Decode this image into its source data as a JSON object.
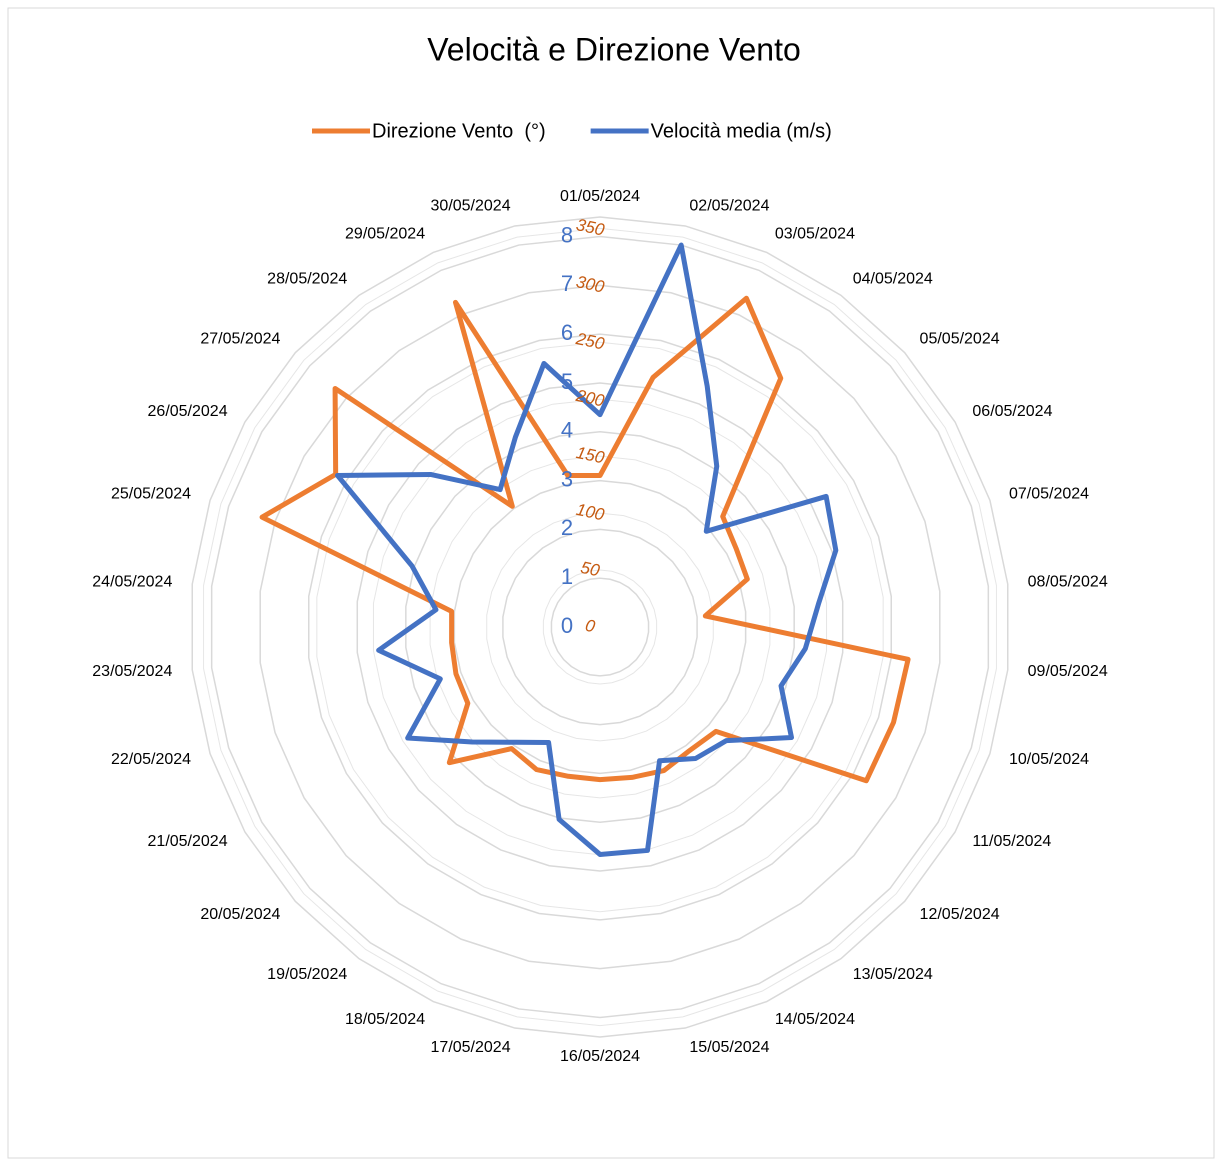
{
  "chart_data": {
    "type": "radar",
    "title": "Velocità e Direzione Vento",
    "categories": [
      "01/05/2024",
      "02/05/2024",
      "03/05/2024",
      "04/05/2024",
      "05/05/2024",
      "06/05/2024",
      "07/05/2024",
      "08/05/2024",
      "09/05/2024",
      "10/05/2024",
      "11/05/2024",
      "12/05/2024",
      "13/05/2024",
      "14/05/2024",
      "15/05/2024",
      "16/05/2024",
      "17/05/2024",
      "18/05/2024",
      "19/05/2024",
      "20/05/2024",
      "21/05/2024",
      "22/05/2024",
      "23/05/2024",
      "24/05/2024",
      "25/05/2024",
      "26/05/2024",
      "27/05/2024",
      "28/05/2024",
      "29/05/2024",
      "30/05/2024"
    ],
    "series": [
      {
        "name": "Direzione Vento  (°)",
        "color": "#ed7d31",
        "axis": "y2",
        "values": [
          133,
          224,
          316,
          270,
          145,
          138,
          136,
          93,
          272,
          271,
          270,
          137,
          134,
          138,
          135,
          134,
          134,
          137,
          132,
          178,
          134,
          133,
          131,
          131,
          312,
          268,
          313,
          131,
          312,
          136
        ]
      },
      {
        "name": "Velocità media (m/s)",
        "color": "#4472c4",
        "values": [
          4.35,
          8.0,
          5.4,
          4.07,
          2.93,
          5.35,
          5.08,
          4.5,
          4.23,
          3.9,
          4.53,
          3.48,
          3.33,
          3.0,
          4.68,
          4.66,
          4.03,
          2.59,
          2.92,
          3.52,
          4.55,
          3.44,
          4.56,
          3.38,
          4.05,
          6.21,
          4.67,
          3.48,
          4.26,
          5.52
        ]
      }
    ],
    "ylim": [
      0,
      8.4
    ],
    "yticks": [
      0,
      1,
      2,
      3,
      4,
      5,
      6,
      7,
      8
    ],
    "y2lim": [
      0,
      360
    ],
    "y2ticks": [
      0,
      50,
      100,
      150,
      200,
      250,
      300,
      350
    ],
    "grid": true,
    "legend": "top"
  }
}
